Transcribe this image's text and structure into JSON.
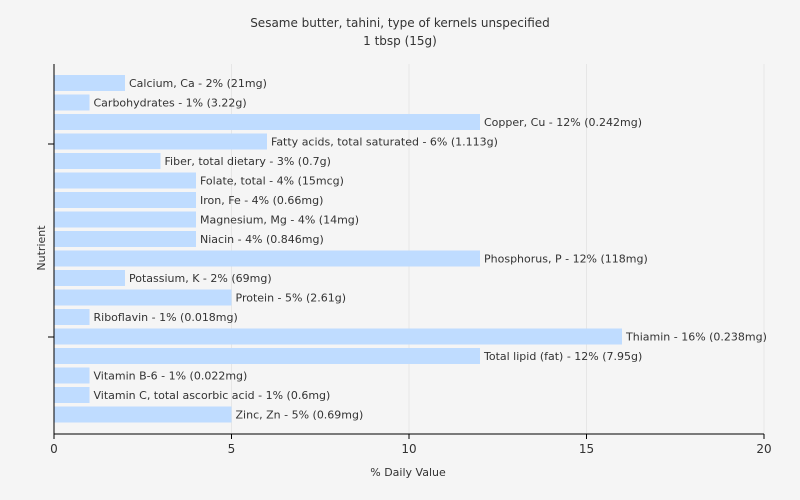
{
  "chart_data": {
    "type": "bar",
    "orientation": "horizontal",
    "title": "Sesame butter, tahini, type of kernels unspecified",
    "subtitle": "1 tbsp (15g)",
    "xlabel": "% Daily Value",
    "ylabel": "Nutrient",
    "xlim": [
      0,
      20
    ],
    "xticks": [
      0,
      5,
      10,
      15,
      20
    ],
    "grid": true,
    "bar_color": "#bfdcff",
    "categories": [
      "Calcium, Ca",
      "Carbohydrates",
      "Copper, Cu",
      "Fatty acids, total saturated",
      "Fiber, total dietary",
      "Folate, total",
      "Iron, Fe",
      "Magnesium, Mg",
      "Niacin",
      "Phosphorus, P",
      "Potassium, K",
      "Protein",
      "Riboflavin",
      "Thiamin",
      "Total lipid (fat)",
      "Vitamin B-6",
      "Vitamin C, total ascorbic acid",
      "Zinc, Zn"
    ],
    "values": [
      2,
      1,
      12,
      6,
      3,
      4,
      4,
      4,
      4,
      12,
      2,
      5,
      1,
      16,
      12,
      1,
      1,
      5
    ],
    "labels": [
      "Calcium, Ca - 2% (21mg)",
      "Carbohydrates - 1% (3.22g)",
      "Copper, Cu - 12% (0.242mg)",
      "Fatty acids, total saturated - 6% (1.113g)",
      "Fiber, total dietary - 3% (0.7g)",
      "Folate, total - 4% (15mcg)",
      "Iron, Fe - 4% (0.66mg)",
      "Magnesium, Mg - 4% (14mg)",
      "Niacin - 4% (0.846mg)",
      "Phosphorus, P - 12% (118mg)",
      "Potassium, K - 2% (69mg)",
      "Protein - 5% (2.61g)",
      "Riboflavin - 1% (0.018mg)",
      "Thiamin - 16% (0.238mg)",
      "Total lipid (fat) - 12% (7.95g)",
      "Vitamin B-6 - 1% (0.022mg)",
      "Vitamin C, total ascorbic acid - 1% (0.6mg)",
      "Zinc, Zn - 5% (0.69mg)"
    ]
  }
}
